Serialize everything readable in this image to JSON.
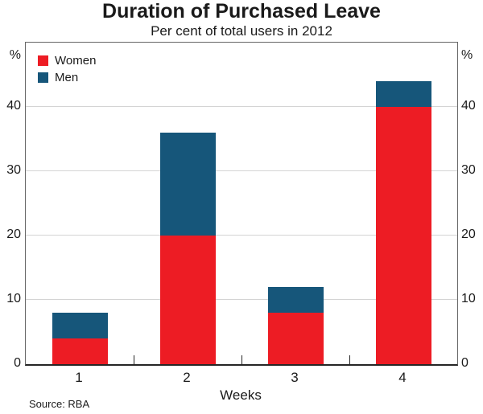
{
  "chart_data": {
    "type": "bar",
    "stacked": true,
    "title": "Duration of Purchased Leave",
    "subtitle": "Per cent of total users in 2012",
    "categories": [
      "1",
      "2",
      "3",
      "4"
    ],
    "series": [
      {
        "name": "Women",
        "color": "#ed1c24",
        "values": [
          4,
          20,
          8,
          40
        ]
      },
      {
        "name": "Men",
        "color": "#16567a",
        "values": [
          4,
          16,
          4,
          4
        ]
      }
    ],
    "stack_totals": [
      8,
      36,
      12,
      44
    ],
    "xlabel": "Weeks",
    "y_unit": "%",
    "y_ticks": [
      0,
      10,
      20,
      30,
      40
    ],
    "ylim": [
      0,
      50
    ],
    "grid": "horizontal",
    "gridline_color": "#d4d4d4",
    "legend_position": "top-left",
    "source": "Source: RBA"
  }
}
